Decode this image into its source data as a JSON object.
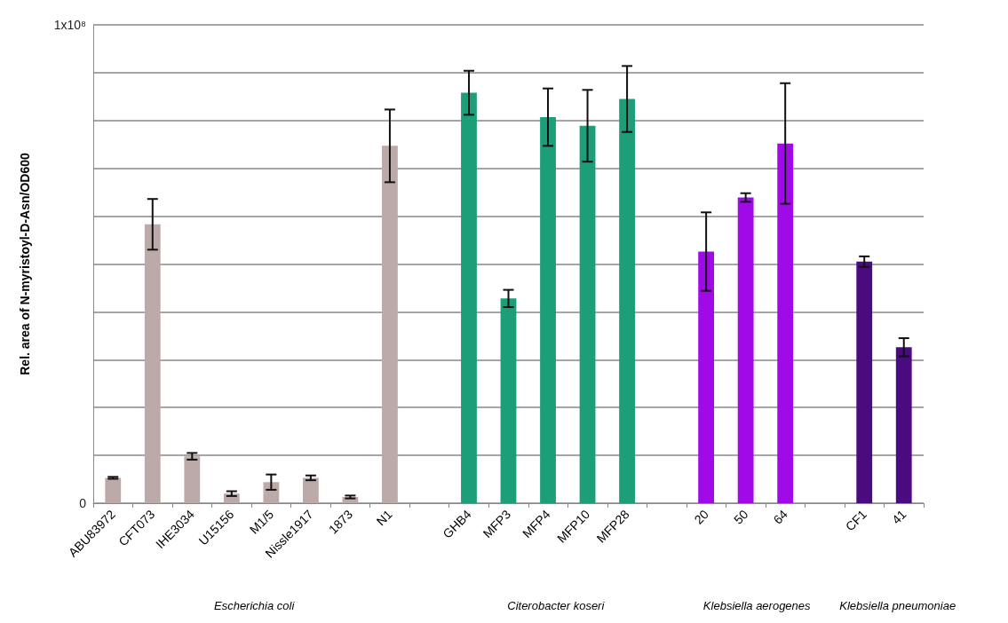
{
  "chart_data": {
    "type": "bar",
    "ylabel": "Rel. area of N-myristoyl-D-Asn/OD600",
    "categories": [
      "ABU83972",
      "CFT073",
      "IHE3034",
      "U15156",
      "M1/5",
      "Nissle1917",
      "1873",
      "N1",
      null,
      "GHB4",
      "MFP3",
      "MFP4",
      "MFP10",
      "MFP28",
      null,
      "20",
      "50",
      "64",
      null,
      "CF1",
      "41"
    ],
    "values": [
      5300000,
      58300000,
      9800000,
      2000000,
      4400000,
      5300000,
      1300000,
      74700000,
      null,
      85800000,
      42800000,
      80700000,
      78900000,
      84500000,
      null,
      52600000,
      63900000,
      75200000,
      null,
      50500000,
      32600000
    ],
    "errors": [
      200000,
      5300000,
      700000,
      500000,
      1600000,
      500000,
      300000,
      7600000,
      null,
      4600000,
      1800000,
      6000000,
      7500000,
      6900000,
      null,
      8200000,
      900000,
      12600000,
      null,
      1100000,
      1900000
    ],
    "colors": [
      "#bcaaa8",
      "#bcaaa8",
      "#bcaaa8",
      "#bcaaa8",
      "#bcaaa8",
      "#bcaaa8",
      "#bcaaa8",
      "#bcaaa8",
      null,
      "#1c9e78",
      "#1c9e78",
      "#1c9e78",
      "#1c9e78",
      "#1c9e78",
      null,
      "#a00ae8",
      "#a00ae8",
      "#a00ae8",
      null,
      "#4a0a80",
      "#4a0a80"
    ],
    "ylim": [
      0,
      100000000
    ],
    "yticks": [
      {
        "value": 0,
        "label": "0"
      },
      {
        "value": 10000000,
        "label": null
      },
      {
        "value": 20000000,
        "label": null
      },
      {
        "value": 30000000,
        "label": null
      },
      {
        "value": 40000000,
        "label": null
      },
      {
        "value": 50000000,
        "label": null
      },
      {
        "value": 60000000,
        "label": null
      },
      {
        "value": 70000000,
        "label": null
      },
      {
        "value": 80000000,
        "label": null
      },
      {
        "value": 90000000,
        "label": null
      },
      {
        "value": 100000000,
        "label": "1x10⁸"
      }
    ],
    "grid": "y",
    "annotations": [
      "Escherichia coli",
      "Citerobacter koseri",
      "Klebsiella aerogenes",
      "Klebsiella pneumoniae"
    ]
  }
}
